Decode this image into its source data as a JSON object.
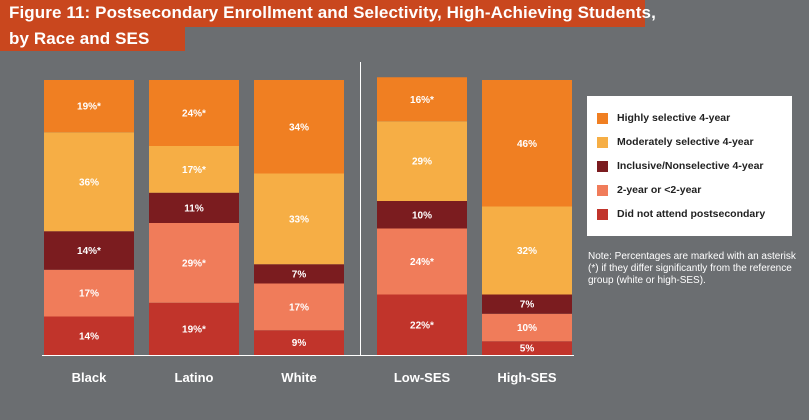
{
  "title": {
    "line1": "Figure 11: Postsecondary Enrollment and Selectivity, High-Achieving Students,",
    "line2": "by Race and SES"
  },
  "chart_data": {
    "type": "bar",
    "stacked": true,
    "groups": [
      {
        "categories": [
          "Black",
          "Latino",
          "White"
        ]
      },
      {
        "categories": [
          "Low-SES",
          "High-SES"
        ]
      }
    ],
    "categories": [
      "Black",
      "Latino",
      "White",
      "Low-SES",
      "High-SES"
    ],
    "series": [
      {
        "name": "Did not attend postsecondary",
        "color": "#c1342b",
        "values": [
          14,
          19,
          9,
          22,
          5
        ],
        "labels": [
          "14%",
          "19%*",
          "9%",
          "22%*",
          "5%"
        ]
      },
      {
        "name": "2-year or <2-year",
        "color": "#f07c5a",
        "values": [
          17,
          29,
          17,
          24,
          10
        ],
        "labels": [
          "17%",
          "29%*",
          "17%",
          "24%*",
          "10%"
        ]
      },
      {
        "name": "Inclusive/Nonselective 4-year",
        "color": "#7b1c1f",
        "values": [
          14,
          11,
          7,
          10,
          7
        ],
        "labels": [
          "14%*",
          "11%",
          "7%",
          "10%",
          "7%"
        ]
      },
      {
        "name": "Moderately selective 4-year",
        "color": "#f6ae45",
        "values": [
          36,
          17,
          33,
          29,
          32
        ],
        "labels": [
          "36%",
          "17%*",
          "33%",
          "29%",
          "32%"
        ]
      },
      {
        "name": "Highly selective 4-year",
        "color": "#f07f22",
        "values": [
          19,
          24,
          34,
          16,
          46
        ],
        "labels": [
          "19%*",
          "24%*",
          "34%",
          "16%*",
          "46%"
        ]
      }
    ],
    "legend_order": [
      "Highly selective 4-year",
      "Moderately selective 4-year",
      "Inclusive/Nonselective 4-year",
      "2-year or <2-year",
      "Did not attend postsecondary"
    ],
    "legend_position": "right",
    "ylim": [
      0,
      100
    ],
    "grid": false
  },
  "note": "Note: Percentages are marked with an asterisk (*) if they differ significantly from the reference group (white or high-SES)."
}
